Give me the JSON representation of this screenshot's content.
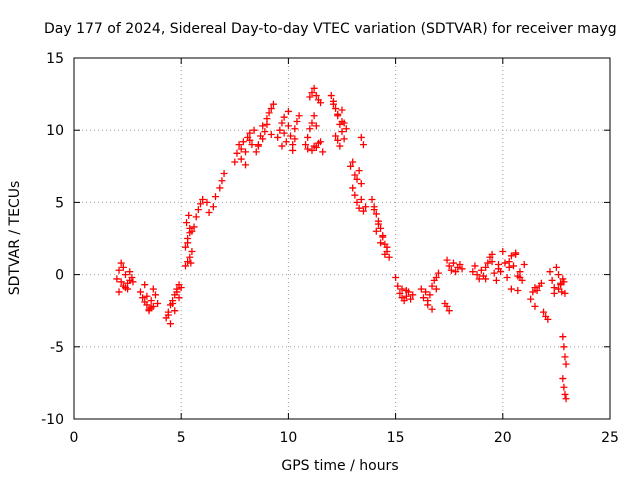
{
  "chart_data": {
    "type": "scatter",
    "title": "Day 177 of 2024, Sidereal Day-to-day VTEC variation (SDTVAR) for receiver mayg",
    "xlabel": "GPS time / hours",
    "ylabel": "SDTVAR / TECUs",
    "xlim": [
      0,
      25
    ],
    "ylim": [
      -10,
      15
    ],
    "x_ticks": [
      0,
      5,
      10,
      15,
      20,
      25
    ],
    "x_tick_labels": [
      "0",
      "5",
      "10",
      "15",
      "20",
      "25"
    ],
    "y_ticks": [
      -10,
      -5,
      0,
      5,
      10,
      15
    ],
    "y_tick_labels": [
      "-10",
      "-5",
      "0",
      "5",
      "10",
      "15"
    ],
    "grid": true,
    "marker": "+",
    "color": "#ff0000",
    "series": [
      {
        "name": "SDTVAR",
        "x": [
          2.0,
          2.1,
          2.2,
          2.3,
          2.4,
          2.5,
          2.6,
          2.1,
          2.3,
          2.5,
          2.7,
          2.2,
          2.4,
          2.6,
          2.75,
          3.1,
          3.2,
          3.3,
          3.4,
          3.5,
          3.6,
          3.7,
          3.8,
          3.9,
          3.3,
          3.5,
          3.7,
          3.4,
          3.6,
          4.3,
          4.4,
          4.5,
          4.6,
          4.7,
          4.8,
          4.9,
          5.0,
          4.5,
          4.7,
          4.9,
          4.4,
          4.6,
          4.8,
          5.2,
          5.3,
          5.4,
          5.5,
          5.3,
          5.4,
          5.6,
          5.7,
          5.8,
          5.9,
          6.0,
          6.2,
          6.3,
          6.5,
          6.6,
          6.8,
          6.9,
          7.0,
          5.25,
          5.35,
          5.5,
          5.2,
          5.3,
          5.45,
          5.4,
          7.5,
          7.6,
          7.7,
          7.8,
          7.9,
          8.0,
          8.1,
          8.2,
          8.3,
          8.4,
          7.8,
          8.0,
          8.2,
          8.5,
          8.6,
          8.7,
          8.8,
          8.9,
          9.0,
          9.1,
          9.2,
          9.3,
          8.6,
          8.8,
          9.0,
          9.2,
          9.5,
          9.6,
          9.7,
          9.8,
          9.9,
          10.0,
          10.1,
          10.2,
          10.3,
          10.4,
          10.5,
          9.7,
          10.0,
          10.3,
          9.8,
          10.2,
          10.8,
          10.9,
          11.0,
          11.1,
          11.2,
          11.3,
          11.0,
          11.1,
          11.2,
          11.3,
          11.4,
          11.5,
          10.9,
          11.2,
          11.4,
          11.1,
          11.3,
          11.5,
          11.6,
          12.0,
          12.1,
          12.2,
          12.3,
          12.4,
          12.5,
          12.6,
          12.7,
          12.1,
          12.3,
          12.5,
          12.2,
          12.4,
          12.6,
          12.3,
          12.5,
          13.4,
          13.5,
          12.9,
          13.0,
          13.1,
          13.2,
          13.3,
          13.4,
          13.5,
          13.6,
          13.0,
          13.2,
          13.4,
          13.1,
          13.3,
          13.9,
          14.0,
          14.1,
          14.2,
          14.3,
          14.4,
          14.5,
          14.6,
          14.7,
          14.1,
          14.3,
          14.5,
          14.0,
          14.2,
          14.4,
          14.6,
          15.0,
          15.1,
          15.2,
          15.3,
          15.4,
          15.5,
          15.6,
          15.7,
          15.8,
          15.3,
          15.5,
          16.2,
          16.3,
          16.4,
          16.5,
          16.6,
          16.7,
          16.8,
          16.9,
          17.0,
          16.5,
          16.7,
          16.9,
          17.3,
          17.4,
          17.5,
          17.4,
          17.5,
          17.6,
          17.7,
          17.8,
          17.9,
          18.0,
          18.1,
          18.6,
          18.7,
          18.8,
          18.9,
          19.0,
          19.1,
          19.2,
          19.3,
          19.4,
          19.5,
          19.6,
          19.7,
          19.8,
          19.9,
          19.2,
          19.5,
          19.8,
          20.0,
          20.1,
          20.2,
          20.3,
          20.4,
          20.5,
          20.6,
          20.7,
          20.8,
          20.9,
          21.0,
          20.4,
          20.7,
          20.6,
          20.8,
          20.3,
          21.3,
          21.4,
          21.5,
          21.6,
          21.7,
          21.8,
          21.5,
          21.9,
          22.0,
          22.1,
          22.2,
          22.3,
          22.4,
          22.5,
          22.6,
          22.7,
          22.4,
          22.6,
          22.7,
          22.75,
          22.8,
          22.85,
          22.9,
          22.95,
          22.8,
          22.85,
          22.9,
          22.95,
          22.8,
          22.85,
          22.9
        ],
        "y": [
          -0.3,
          0.3,
          -0.5,
          -0.8,
          0.0,
          -1.0,
          -0.4,
          -1.2,
          0.5,
          -0.6,
          -0.2,
          0.8,
          -0.9,
          0.2,
          -0.5,
          -1.2,
          -1.6,
          -1.9,
          -2.1,
          -2.4,
          -1.8,
          -2.2,
          -1.4,
          -2.0,
          -0.7,
          -2.5,
          -1.0,
          -1.5,
          -2.3,
          -3.0,
          -2.6,
          -2.1,
          -1.8,
          -1.4,
          -1.0,
          -0.7,
          -0.9,
          -3.4,
          -2.5,
          -1.6,
          -2.8,
          -2.0,
          -1.2,
          0.6,
          0.9,
          1.2,
          1.6,
          2.5,
          2.9,
          3.3,
          4.0,
          4.5,
          4.9,
          5.2,
          5.0,
          4.3,
          4.7,
          5.4,
          6.0,
          6.5,
          7.0,
          3.6,
          4.1,
          3.0,
          1.9,
          2.2,
          0.8,
          3.2,
          7.8,
          8.4,
          9.0,
          8.7,
          9.2,
          8.5,
          9.5,
          9.8,
          9.0,
          10.0,
          8.0,
          7.6,
          9.3,
          8.5,
          9.0,
          9.6,
          10.3,
          9.9,
          10.8,
          11.2,
          11.5,
          11.8,
          8.9,
          9.4,
          10.4,
          9.7,
          9.5,
          10.0,
          10.5,
          9.8,
          9.2,
          10.3,
          9.6,
          9.0,
          10.1,
          10.6,
          11.0,
          8.9,
          11.3,
          9.4,
          10.9,
          8.6,
          9.0,
          9.5,
          10.1,
          10.5,
          11.0,
          10.3,
          12.3,
          12.6,
          12.9,
          12.4,
          12.1,
          11.9,
          8.7,
          8.9,
          9.1,
          8.6,
          8.8,
          9.2,
          8.5,
          12.4,
          12.0,
          11.5,
          11.0,
          10.4,
          9.9,
          9.4,
          10.1,
          11.8,
          11.1,
          10.6,
          9.6,
          8.9,
          10.5,
          9.3,
          11.4,
          9.5,
          9.0,
          7.5,
          6.0,
          5.5,
          5.0,
          4.6,
          5.2,
          4.4,
          4.7,
          7.8,
          6.6,
          6.3,
          6.9,
          7.2,
          5.2,
          4.7,
          4.2,
          3.7,
          3.2,
          2.6,
          2.1,
          1.6,
          1.2,
          3.0,
          2.2,
          1.4,
          4.5,
          3.5,
          2.7,
          1.9,
          -0.2,
          -0.8,
          -1.3,
          -1.6,
          -1.8,
          -1.5,
          -1.2,
          -1.7,
          -1.4,
          -1.0,
          -1.1,
          -1.0,
          -1.6,
          -1.2,
          -1.8,
          -1.4,
          -0.8,
          -0.4,
          -0.2,
          0.1,
          -2.1,
          -2.4,
          -1.0,
          -2.0,
          -2.2,
          -2.5,
          1.0,
          0.6,
          0.3,
          0.8,
          0.2,
          0.5,
          0.7,
          0.4,
          0.2,
          0.6,
          0.0,
          -0.3,
          0.3,
          -0.1,
          0.5,
          0.8,
          1.2,
          0.9,
          0.1,
          -0.4,
          0.7,
          0.2,
          -0.3,
          1.4,
          0.4,
          1.6,
          0.8,
          -0.2,
          0.5,
          1.3,
          0.6,
          1.5,
          -0.1,
          0.2,
          -0.4,
          0.7,
          -1.0,
          -1.1,
          1.4,
          -0.2,
          0.9,
          -1.7,
          -1.2,
          -0.9,
          -1.1,
          -0.8,
          -0.6,
          -2.2,
          -2.6,
          -2.9,
          -3.1,
          0.2,
          -0.4,
          -0.9,
          0.5,
          -1.0,
          -0.6,
          -1.3,
          0.0,
          -0.7,
          -1.2,
          -4.3,
          -5.0,
          -5.7,
          -6.2,
          -7.2,
          -7.8,
          -8.3,
          -8.6,
          -0.3,
          -0.5,
          -1.3
        ]
      }
    ]
  }
}
